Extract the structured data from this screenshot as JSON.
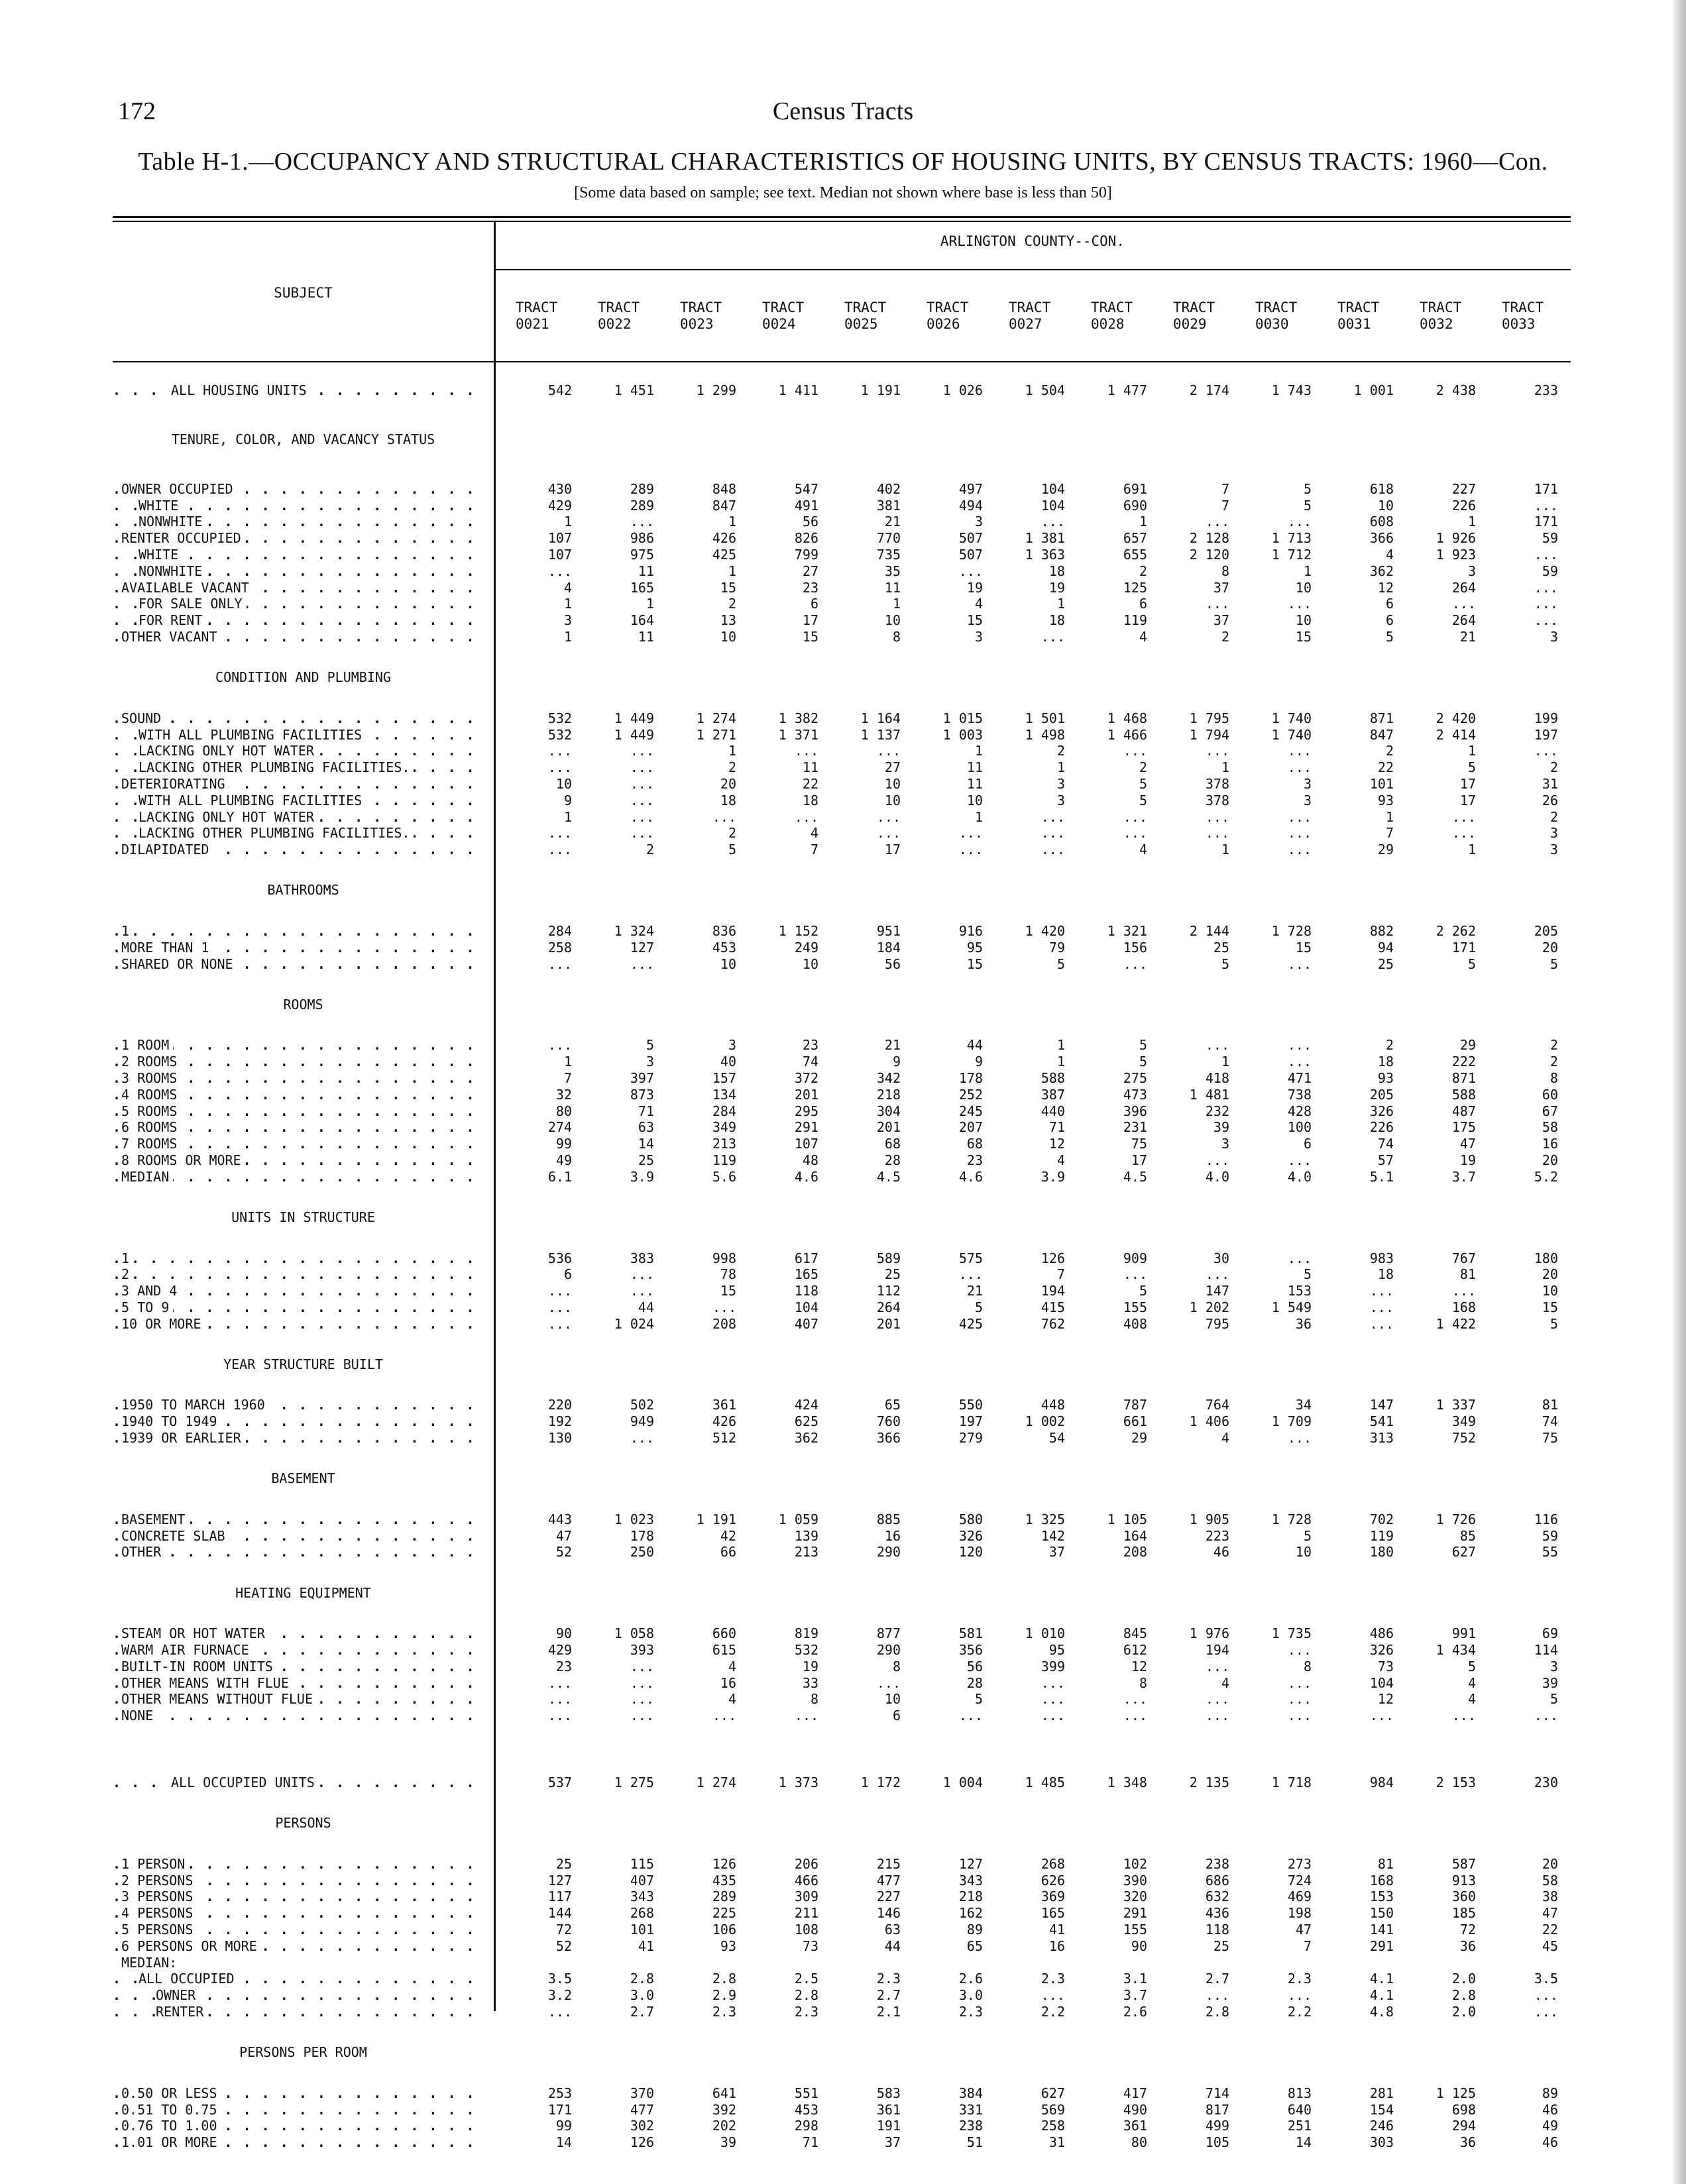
{
  "page_number": "172",
  "running_head": "Census Tracts",
  "title": "Table H-1.—OCCUPANCY AND STRUCTURAL CHARACTERISTICS OF HOUSING UNITS, BY CENSUS TRACTS: 1960—Con.",
  "note": "[Some data based on sample; see text. Median not shown where base is less than 50]",
  "subject_header": "SUBJECT",
  "county_header": "ARLINGTON COUNTY--CON.",
  "columns": [
    [
      "TRACT",
      "0021"
    ],
    [
      "TRACT",
      "0022"
    ],
    [
      "TRACT",
      "0023"
    ],
    [
      "TRACT",
      "0024"
    ],
    [
      "TRACT",
      "0025"
    ],
    [
      "TRACT",
      "0026"
    ],
    [
      "TRACT",
      "0027"
    ],
    [
      "TRACT",
      "0028"
    ],
    [
      "TRACT",
      "0029"
    ],
    [
      "TRACT",
      "0030"
    ],
    [
      "TRACT",
      "0031"
    ],
    [
      "TRACT",
      "0032"
    ],
    [
      "TRACT",
      "0033"
    ]
  ],
  "rows": [
    {
      "type": "total",
      "label": "ALL HOUSING UNITS",
      "values": [
        "542",
        "1 451",
        "1 299",
        "1 411",
        "1 191",
        "1 026",
        "1 504",
        "1 477",
        "2 174",
        "1 743",
        "1 001",
        "2 438",
        "233"
      ]
    },
    {
      "type": "section2",
      "label": "TENURE, COLOR, AND VACANCY STATUS"
    },
    {
      "label": "OWNER OCCUPIED",
      "indent": 0,
      "values": [
        "430",
        "289",
        "848",
        "547",
        "402",
        "497",
        "104",
        "691",
        "7",
        "5",
        "618",
        "227",
        "171"
      ]
    },
    {
      "label": "WHITE",
      "indent": 1,
      "values": [
        "429",
        "289",
        "847",
        "491",
        "381",
        "494",
        "104",
        "690",
        "7",
        "5",
        "10",
        "226",
        "..."
      ]
    },
    {
      "label": "NONWHITE",
      "indent": 1,
      "values": [
        "1",
        "...",
        "1",
        "56",
        "21",
        "3",
        "...",
        "1",
        "...",
        "...",
        "608",
        "1",
        "171"
      ]
    },
    {
      "label": "RENTER OCCUPIED",
      "indent": 0,
      "values": [
        "107",
        "986",
        "426",
        "826",
        "770",
        "507",
        "1 381",
        "657",
        "2 128",
        "1 713",
        "366",
        "1 926",
        "59"
      ]
    },
    {
      "label": "WHITE",
      "indent": 1,
      "values": [
        "107",
        "975",
        "425",
        "799",
        "735",
        "507",
        "1 363",
        "655",
        "2 120",
        "1 712",
        "4",
        "1 923",
        "..."
      ]
    },
    {
      "label": "NONWHITE",
      "indent": 1,
      "values": [
        "...",
        "11",
        "1",
        "27",
        "35",
        "...",
        "18",
        "2",
        "8",
        "1",
        "362",
        "3",
        "59"
      ]
    },
    {
      "label": "AVAILABLE VACANT",
      "indent": 0,
      "values": [
        "4",
        "165",
        "15",
        "23",
        "11",
        "19",
        "19",
        "125",
        "37",
        "10",
        "12",
        "264",
        "..."
      ]
    },
    {
      "label": "FOR SALE ONLY",
      "indent": 1,
      "values": [
        "1",
        "1",
        "2",
        "6",
        "1",
        "4",
        "1",
        "6",
        "...",
        "...",
        "6",
        "...",
        "..."
      ]
    },
    {
      "label": "FOR RENT",
      "indent": 1,
      "values": [
        "3",
        "164",
        "13",
        "17",
        "10",
        "15",
        "18",
        "119",
        "37",
        "10",
        "6",
        "264",
        "..."
      ]
    },
    {
      "label": "OTHER VACANT",
      "indent": 0,
      "values": [
        "1",
        "11",
        "10",
        "15",
        "8",
        "3",
        "...",
        "4",
        "2",
        "15",
        "5",
        "21",
        "3"
      ]
    },
    {
      "type": "section",
      "label": "CONDITION AND PLUMBING"
    },
    {
      "label": "SOUND",
      "indent": 0,
      "values": [
        "532",
        "1 449",
        "1 274",
        "1 382",
        "1 164",
        "1 015",
        "1 501",
        "1 468",
        "1 795",
        "1 740",
        "871",
        "2 420",
        "199"
      ]
    },
    {
      "label": "WITH ALL PLUMBING FACILITIES",
      "indent": 1,
      "values": [
        "532",
        "1 449",
        "1 271",
        "1 371",
        "1 137",
        "1 003",
        "1 498",
        "1 466",
        "1 794",
        "1 740",
        "847",
        "2 414",
        "197"
      ]
    },
    {
      "label": "LACKING ONLY HOT WATER",
      "indent": 1,
      "values": [
        "...",
        "...",
        "1",
        "...",
        "...",
        "1",
        "2",
        "...",
        "...",
        "...",
        "2",
        "1",
        "..."
      ]
    },
    {
      "label": "LACKING OTHER PLUMBING FACILITIES.",
      "indent": 1,
      "values": [
        "...",
        "...",
        "2",
        "11",
        "27",
        "11",
        "1",
        "2",
        "1",
        "...",
        "22",
        "5",
        "2"
      ]
    },
    {
      "label": "DETERIORATING",
      "indent": 0,
      "values": [
        "10",
        "...",
        "20",
        "22",
        "10",
        "11",
        "3",
        "5",
        "378",
        "3",
        "101",
        "17",
        "31"
      ]
    },
    {
      "label": "WITH ALL PLUMBING FACILITIES",
      "indent": 1,
      "values": [
        "9",
        "...",
        "18",
        "18",
        "10",
        "10",
        "3",
        "5",
        "378",
        "3",
        "93",
        "17",
        "26"
      ]
    },
    {
      "label": "LACKING ONLY HOT WATER",
      "indent": 1,
      "values": [
        "1",
        "...",
        "...",
        "...",
        "...",
        "1",
        "...",
        "...",
        "...",
        "...",
        "1",
        "...",
        "2"
      ]
    },
    {
      "label": "LACKING OTHER PLUMBING FACILITIES.",
      "indent": 1,
      "values": [
        "...",
        "...",
        "2",
        "4",
        "...",
        "...",
        "...",
        "...",
        "...",
        "...",
        "7",
        "...",
        "3"
      ]
    },
    {
      "label": "DILAPIDATED",
      "indent": 0,
      "values": [
        "...",
        "2",
        "5",
        "7",
        "17",
        "...",
        "...",
        "4",
        "1",
        "...",
        "29",
        "1",
        "3"
      ]
    },
    {
      "type": "section",
      "label": "BATHROOMS"
    },
    {
      "label": "1",
      "indent": 0,
      "values": [
        "284",
        "1 324",
        "836",
        "1 152",
        "951",
        "916",
        "1 420",
        "1 321",
        "2 144",
        "1 728",
        "882",
        "2 262",
        "205"
      ]
    },
    {
      "label": "MORE THAN 1",
      "indent": 0,
      "values": [
        "258",
        "127",
        "453",
        "249",
        "184",
        "95",
        "79",
        "156",
        "25",
        "15",
        "94",
        "171",
        "20"
      ]
    },
    {
      "label": "SHARED OR NONE",
      "indent": 0,
      "values": [
        "...",
        "...",
        "10",
        "10",
        "56",
        "15",
        "5",
        "...",
        "5",
        "...",
        "25",
        "5",
        "5"
      ]
    },
    {
      "type": "section",
      "label": "ROOMS"
    },
    {
      "label": "1 ROOM",
      "indent": 0,
      "values": [
        "...",
        "5",
        "3",
        "23",
        "21",
        "44",
        "1",
        "5",
        "...",
        "...",
        "2",
        "29",
        "2"
      ]
    },
    {
      "label": "2 ROOMS",
      "indent": 0,
      "values": [
        "1",
        "3",
        "40",
        "74",
        "9",
        "9",
        "1",
        "5",
        "1",
        "...",
        "18",
        "222",
        "2"
      ]
    },
    {
      "label": "3 ROOMS",
      "indent": 0,
      "values": [
        "7",
        "397",
        "157",
        "372",
        "342",
        "178",
        "588",
        "275",
        "418",
        "471",
        "93",
        "871",
        "8"
      ]
    },
    {
      "label": "4 ROOMS",
      "indent": 0,
      "values": [
        "32",
        "873",
        "134",
        "201",
        "218",
        "252",
        "387",
        "473",
        "1 481",
        "738",
        "205",
        "588",
        "60"
      ]
    },
    {
      "label": "5 ROOMS",
      "indent": 0,
      "values": [
        "80",
        "71",
        "284",
        "295",
        "304",
        "245",
        "440",
        "396",
        "232",
        "428",
        "326",
        "487",
        "67"
      ]
    },
    {
      "label": "6 ROOMS",
      "indent": 0,
      "values": [
        "274",
        "63",
        "349",
        "291",
        "201",
        "207",
        "71",
        "231",
        "39",
        "100",
        "226",
        "175",
        "58"
      ]
    },
    {
      "label": "7 ROOMS",
      "indent": 0,
      "values": [
        "99",
        "14",
        "213",
        "107",
        "68",
        "68",
        "12",
        "75",
        "3",
        "6",
        "74",
        "47",
        "16"
      ]
    },
    {
      "label": "8 ROOMS OR MORE",
      "indent": 0,
      "values": [
        "49",
        "25",
        "119",
        "48",
        "28",
        "23",
        "4",
        "17",
        "...",
        "...",
        "57",
        "19",
        "20"
      ]
    },
    {
      "label": "MEDIAN",
      "indent": 0,
      "values": [
        "6.1",
        "3.9",
        "5.6",
        "4.6",
        "4.5",
        "4.6",
        "3.9",
        "4.5",
        "4.0",
        "4.0",
        "5.1",
        "3.7",
        "5.2"
      ]
    },
    {
      "type": "section",
      "label": "UNITS IN STRUCTURE"
    },
    {
      "label": "1",
      "indent": 0,
      "values": [
        "536",
        "383",
        "998",
        "617",
        "589",
        "575",
        "126",
        "909",
        "30",
        "...",
        "983",
        "767",
        "180"
      ]
    },
    {
      "label": "2",
      "indent": 0,
      "values": [
        "6",
        "...",
        "78",
        "165",
        "25",
        "...",
        "7",
        "...",
        "...",
        "5",
        "18",
        "81",
        "20"
      ]
    },
    {
      "label": "3 AND 4",
      "indent": 0,
      "values": [
        "...",
        "...",
        "15",
        "118",
        "112",
        "21",
        "194",
        "5",
        "147",
        "153",
        "...",
        "...",
        "10"
      ]
    },
    {
      "label": "5 TO 9",
      "indent": 0,
      "values": [
        "...",
        "44",
        "...",
        "104",
        "264",
        "5",
        "415",
        "155",
        "1 202",
        "1 549",
        "...",
        "168",
        "15"
      ]
    },
    {
      "label": "10 OR MORE",
      "indent": 0,
      "values": [
        "...",
        "1 024",
        "208",
        "407",
        "201",
        "425",
        "762",
        "408",
        "795",
        "36",
        "...",
        "1 422",
        "5"
      ]
    },
    {
      "type": "section",
      "label": "YEAR STRUCTURE BUILT"
    },
    {
      "label": "1950 TO MARCH 1960",
      "indent": 0,
      "values": [
        "220",
        "502",
        "361",
        "424",
        "65",
        "550",
        "448",
        "787",
        "764",
        "34",
        "147",
        "1 337",
        "81"
      ]
    },
    {
      "label": "1940 TO 1949",
      "indent": 0,
      "values": [
        "192",
        "949",
        "426",
        "625",
        "760",
        "197",
        "1 002",
        "661",
        "1 406",
        "1 709",
        "541",
        "349",
        "74"
      ]
    },
    {
      "label": "1939 OR EARLIER",
      "indent": 0,
      "values": [
        "130",
        "...",
        "512",
        "362",
        "366",
        "279",
        "54",
        "29",
        "4",
        "...",
        "313",
        "752",
        "75"
      ]
    },
    {
      "type": "section",
      "label": "BASEMENT"
    },
    {
      "label": "BASEMENT",
      "indent": 0,
      "values": [
        "443",
        "1 023",
        "1 191",
        "1 059",
        "885",
        "580",
        "1 325",
        "1 105",
        "1 905",
        "1 728",
        "702",
        "1 726",
        "116"
      ]
    },
    {
      "label": "CONCRETE SLAB",
      "indent": 0,
      "values": [
        "47",
        "178",
        "42",
        "139",
        "16",
        "326",
        "142",
        "164",
        "223",
        "5",
        "119",
        "85",
        "59"
      ]
    },
    {
      "label": "OTHER",
      "indent": 0,
      "values": [
        "52",
        "250",
        "66",
        "213",
        "290",
        "120",
        "37",
        "208",
        "46",
        "10",
        "180",
        "627",
        "55"
      ]
    },
    {
      "type": "section",
      "label": "HEATING EQUIPMENT"
    },
    {
      "label": "STEAM OR HOT WATER",
      "indent": 0,
      "values": [
        "90",
        "1 058",
        "660",
        "819",
        "877",
        "581",
        "1 010",
        "845",
        "1 976",
        "1 735",
        "486",
        "991",
        "69"
      ]
    },
    {
      "label": "WARM AIR FURNACE",
      "indent": 0,
      "values": [
        "429",
        "393",
        "615",
        "532",
        "290",
        "356",
        "95",
        "612",
        "194",
        "...",
        "326",
        "1 434",
        "114"
      ]
    },
    {
      "label": "BUILT-IN ROOM UNITS",
      "indent": 0,
      "values": [
        "23",
        "...",
        "4",
        "19",
        "8",
        "56",
        "399",
        "12",
        "...",
        "8",
        "73",
        "5",
        "3"
      ]
    },
    {
      "label": "OTHER MEANS WITH FLUE",
      "indent": 0,
      "values": [
        "...",
        "...",
        "16",
        "33",
        "...",
        "28",
        "...",
        "8",
        "4",
        "...",
        "104",
        "4",
        "39"
      ]
    },
    {
      "label": "OTHER MEANS WITHOUT FLUE",
      "indent": 0,
      "values": [
        "...",
        "...",
        "4",
        "8",
        "10",
        "5",
        "...",
        "...",
        "...",
        "...",
        "12",
        "4",
        "5"
      ]
    },
    {
      "label": "NONE",
      "indent": 0,
      "values": [
        "...",
        "...",
        "...",
        "...",
        "6",
        "...",
        "...",
        "...",
        "...",
        "...",
        "...",
        "...",
        "..."
      ]
    },
    {
      "type": "total",
      "label": "ALL OCCUPIED UNITS",
      "values": [
        "537",
        "1 275",
        "1 274",
        "1 373",
        "1 172",
        "1 004",
        "1 485",
        "1 348",
        "2 135",
        "1 718",
        "984",
        "2 153",
        "230"
      ]
    },
    {
      "type": "section",
      "label": "PERSONS"
    },
    {
      "label": "1 PERSON",
      "indent": 0,
      "values": [
        "25",
        "115",
        "126",
        "206",
        "215",
        "127",
        "268",
        "102",
        "238",
        "273",
        "81",
        "587",
        "20"
      ]
    },
    {
      "label": "2 PERSONS",
      "indent": 0,
      "values": [
        "127",
        "407",
        "435",
        "466",
        "477",
        "343",
        "626",
        "390",
        "686",
        "724",
        "168",
        "913",
        "58"
      ]
    },
    {
      "label": "3 PERSONS",
      "indent": 0,
      "values": [
        "117",
        "343",
        "289",
        "309",
        "227",
        "218",
        "369",
        "320",
        "632",
        "469",
        "153",
        "360",
        "38"
      ]
    },
    {
      "label": "4 PERSONS",
      "indent": 0,
      "values": [
        "144",
        "268",
        "225",
        "211",
        "146",
        "162",
        "165",
        "291",
        "436",
        "198",
        "150",
        "185",
        "47"
      ]
    },
    {
      "label": "5 PERSONS",
      "indent": 0,
      "values": [
        "72",
        "101",
        "106",
        "108",
        "63",
        "89",
        "41",
        "155",
        "118",
        "47",
        "141",
        "72",
        "22"
      ]
    },
    {
      "label": "6 PERSONS OR MORE",
      "indent": 0,
      "values": [
        "52",
        "41",
        "93",
        "73",
        "44",
        "65",
        "16",
        "90",
        "25",
        "7",
        "291",
        "36",
        "45"
      ]
    },
    {
      "label": "MEDIAN:",
      "indent": 0,
      "nodots": true,
      "values": []
    },
    {
      "label": "ALL OCCUPIED",
      "indent": 1,
      "values": [
        "3.5",
        "2.8",
        "2.8",
        "2.5",
        "2.3",
        "2.6",
        "2.3",
        "3.1",
        "2.7",
        "2.3",
        "4.1",
        "2.0",
        "3.5"
      ]
    },
    {
      "label": "OWNER",
      "indent": 2,
      "values": [
        "3.2",
        "3.0",
        "2.9",
        "2.8",
        "2.7",
        "3.0",
        "...",
        "3.7",
        "...",
        "...",
        "4.1",
        "2.8",
        "..."
      ]
    },
    {
      "label": "RENTER",
      "indent": 2,
      "values": [
        "...",
        "2.7",
        "2.3",
        "2.3",
        "2.1",
        "2.3",
        "2.2",
        "2.6",
        "2.8",
        "2.2",
        "4.8",
        "2.0",
        "..."
      ]
    },
    {
      "type": "section",
      "label": "PERSONS PER ROOM"
    },
    {
      "label": "0.50 OR LESS",
      "indent": 0,
      "values": [
        "253",
        "370",
        "641",
        "551",
        "583",
        "384",
        "627",
        "417",
        "714",
        "813",
        "281",
        "1 125",
        "89"
      ]
    },
    {
      "label": "0.51 TO 0.75",
      "indent": 0,
      "values": [
        "171",
        "477",
        "392",
        "453",
        "361",
        "331",
        "569",
        "490",
        "817",
        "640",
        "154",
        "698",
        "46"
      ]
    },
    {
      "label": "0.76 TO 1.00",
      "indent": 0,
      "values": [
        "99",
        "302",
        "202",
        "298",
        "191",
        "238",
        "258",
        "361",
        "499",
        "251",
        "246",
        "294",
        "49"
      ]
    },
    {
      "label": "1.01 OR MORE",
      "indent": 0,
      "values": [
        "14",
        "126",
        "39",
        "71",
        "37",
        "51",
        "31",
        "80",
        "105",
        "14",
        "303",
        "36",
        "46"
      ]
    }
  ]
}
